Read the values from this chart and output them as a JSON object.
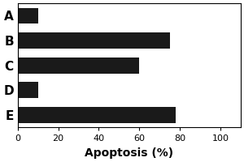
{
  "categories": [
    "A",
    "B",
    "C",
    "D",
    "E"
  ],
  "values": [
    10,
    75,
    60,
    10,
    78
  ],
  "bar_color": "#1a1a1a",
  "xlabel": "Apoptosis (%)",
  "xlim": [
    0,
    110
  ],
  "xticks": [
    0,
    20,
    40,
    60,
    80,
    100
  ],
  "bar_height": 0.65,
  "background_color": "#ffffff",
  "xlabel_fontsize": 10,
  "tick_fontsize": 8,
  "label_fontsize": 11,
  "label_fontweight": "bold"
}
